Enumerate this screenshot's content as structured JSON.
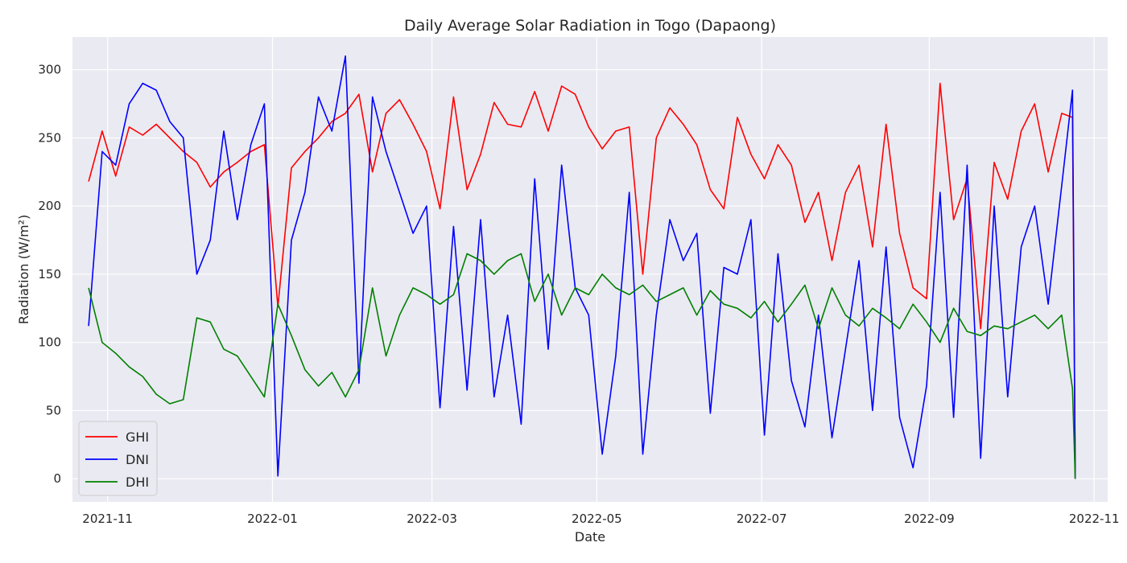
{
  "chart_data": {
    "type": "line",
    "title": "Daily Average Solar Radiation in Togo (Dapaong)",
    "xlabel": "Date",
    "ylabel": "Radiation (W/m²)",
    "xlim": [
      "2021-10-19",
      "2022-11-06"
    ],
    "ylim": [
      -17,
      324
    ],
    "x_ticks": [
      "2021-11-01",
      "2022-01-01",
      "2022-03-01",
      "2022-05-01",
      "2022-07-01",
      "2022-09-01",
      "2022-11-01"
    ],
    "x_tick_labels": [
      "2021-11",
      "2022-01",
      "2022-03",
      "2022-05",
      "2022-07",
      "2022-09",
      "2022-11"
    ],
    "y_ticks": [
      0,
      50,
      100,
      150,
      200,
      250,
      300
    ],
    "grid": true,
    "legend": "lower-left",
    "x": [
      "2021-10-25",
      "2021-10-30",
      "2021-11-04",
      "2021-11-09",
      "2021-11-14",
      "2021-11-19",
      "2021-11-24",
      "2021-11-29",
      "2021-12-04",
      "2021-12-09",
      "2021-12-14",
      "2021-12-19",
      "2021-12-24",
      "2021-12-29",
      "2022-01-03",
      "2022-01-08",
      "2022-01-13",
      "2022-01-18",
      "2022-01-23",
      "2022-01-28",
      "2022-02-02",
      "2022-02-07",
      "2022-02-12",
      "2022-02-17",
      "2022-02-22",
      "2022-02-27",
      "2022-03-04",
      "2022-03-09",
      "2022-03-14",
      "2022-03-19",
      "2022-03-24",
      "2022-03-29",
      "2022-04-03",
      "2022-04-08",
      "2022-04-13",
      "2022-04-18",
      "2022-04-23",
      "2022-04-28",
      "2022-05-03",
      "2022-05-08",
      "2022-05-13",
      "2022-05-18",
      "2022-05-23",
      "2022-05-28",
      "2022-06-02",
      "2022-06-07",
      "2022-06-12",
      "2022-06-17",
      "2022-06-22",
      "2022-06-27",
      "2022-07-02",
      "2022-07-07",
      "2022-07-12",
      "2022-07-17",
      "2022-07-22",
      "2022-07-27",
      "2022-08-01",
      "2022-08-06",
      "2022-08-11",
      "2022-08-16",
      "2022-08-21",
      "2022-08-26",
      "2022-08-31",
      "2022-09-05",
      "2022-09-10",
      "2022-09-15",
      "2022-09-20",
      "2022-09-25",
      "2022-09-30",
      "2022-10-05",
      "2022-10-10",
      "2022-10-15",
      "2022-10-20",
      "2022-10-24",
      "2022-10-25"
    ],
    "series": [
      {
        "name": "GHI",
        "color": "#ff0000",
        "values": [
          218,
          255,
          222,
          258,
          252,
          260,
          250,
          240,
          232,
          214,
          225,
          232,
          240,
          245,
          126,
          228,
          240,
          250,
          262,
          268,
          282,
          225,
          268,
          278,
          260,
          240,
          198,
          280,
          212,
          238,
          276,
          260,
          258,
          284,
          255,
          288,
          282,
          258,
          242,
          255,
          258,
          150,
          250,
          272,
          260,
          245,
          212,
          198,
          265,
          238,
          220,
          245,
          230,
          188,
          210,
          160,
          210,
          230,
          170,
          260,
          180,
          140,
          132,
          290,
          190,
          220,
          110,
          232,
          205,
          255,
          275,
          225,
          268,
          265,
          0
        ]
      },
      {
        "name": "DNI",
        "color": "#0000ff",
        "values": [
          112,
          240,
          230,
          275,
          290,
          285,
          262,
          250,
          150,
          175,
          255,
          190,
          245,
          275,
          2,
          175,
          210,
          280,
          255,
          310,
          70,
          280,
          240,
          210,
          180,
          200,
          52,
          185,
          65,
          190,
          60,
          120,
          40,
          220,
          95,
          230,
          140,
          120,
          18,
          90,
          210,
          18,
          120,
          190,
          160,
          180,
          48,
          155,
          150,
          190,
          32,
          165,
          72,
          38,
          120,
          30,
          95,
          160,
          50,
          170,
          45,
          8,
          68,
          210,
          45,
          230,
          15,
          200,
          60,
          170,
          200,
          128,
          215,
          285,
          0
        ]
      },
      {
        "name": "DHI",
        "color": "#008000",
        "values": [
          140,
          100,
          92,
          82,
          75,
          62,
          55,
          58,
          118,
          115,
          95,
          90,
          75,
          60,
          128,
          105,
          80,
          68,
          78,
          60,
          80,
          140,
          90,
          120,
          140,
          135,
          128,
          135,
          165,
          160,
          150,
          160,
          165,
          130,
          150,
          120,
          140,
          135,
          150,
          140,
          135,
          142,
          130,
          135,
          140,
          120,
          138,
          128,
          125,
          118,
          130,
          115,
          128,
          142,
          110,
          140,
          120,
          112,
          125,
          118,
          110,
          128,
          115,
          100,
          125,
          108,
          105,
          112,
          110,
          115,
          120,
          110,
          120,
          66,
          0
        ]
      }
    ]
  }
}
